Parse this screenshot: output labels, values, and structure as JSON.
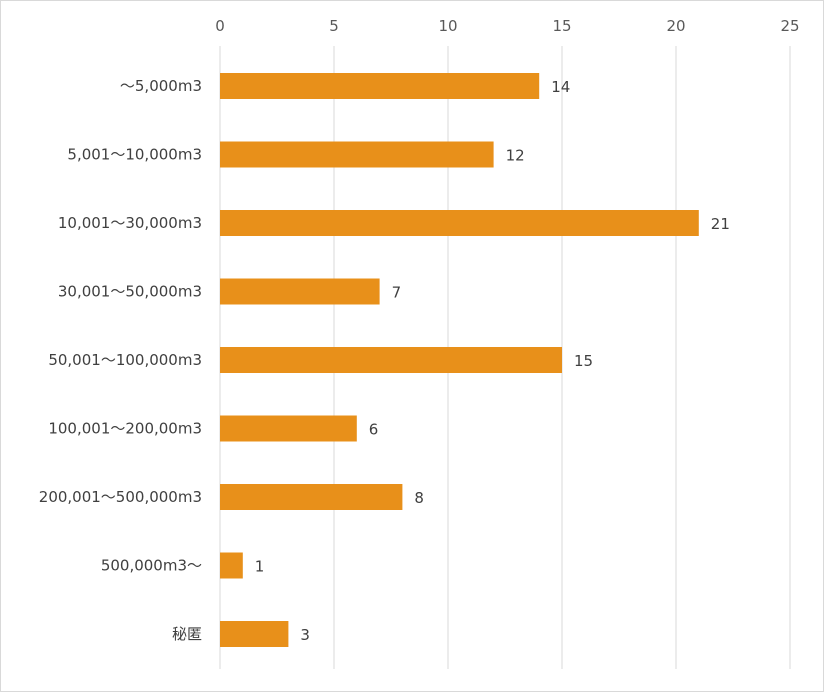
{
  "chart_data": {
    "type": "bar",
    "orientation": "horizontal",
    "categories": [
      "～5,000m3",
      "5,001～10,000m3",
      "10,001～30,000m3",
      "30,001～50,000m3",
      "50,001～100,000m3",
      "100,001～200,00m3",
      "200,001～500,000m3",
      "500,000m3～",
      "秘匿"
    ],
    "values": [
      14,
      12,
      21,
      7,
      15,
      6,
      8,
      1,
      3
    ],
    "xlim": [
      0,
      25
    ],
    "xticks": [
      0,
      5,
      10,
      15,
      20,
      25
    ],
    "x_axis_position": "top",
    "grid": true,
    "legend": "none",
    "data_labels": true,
    "bar_color": "#e8901a",
    "grid_color": "#d9d9d9"
  }
}
